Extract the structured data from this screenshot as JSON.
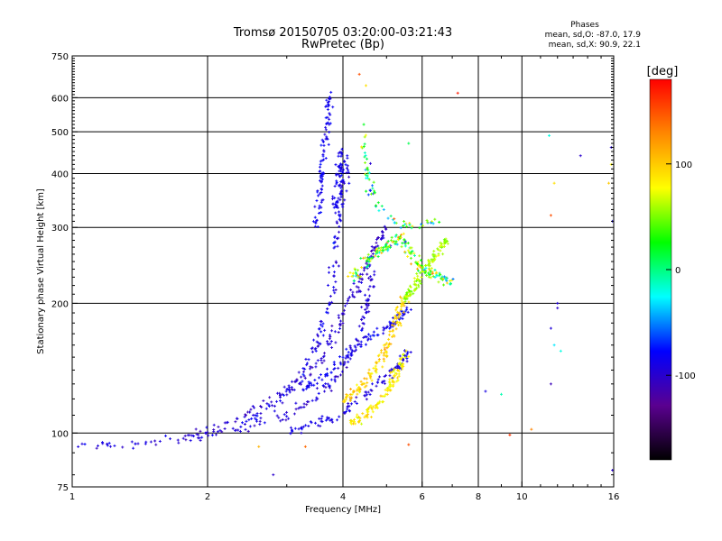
{
  "chart_data": {
    "type": "scatter",
    "title": "Tromsø 20150705 03:20:00-03:21:43",
    "subtitle": "RwPretec (Bp)",
    "xlabel": "Frequency [MHz]",
    "ylabel": "Stationary phase Virtual Height [km]",
    "x_scale": "log",
    "y_scale": "log",
    "xlim": [
      1,
      16
    ],
    "ylim": [
      75,
      750
    ],
    "x_ticks": [
      1,
      2,
      4,
      6,
      8,
      10,
      16
    ],
    "x_tick_labels": [
      "1",
      "2",
      "4",
      "6",
      "8",
      "10",
      "16"
    ],
    "y_ticks": [
      75,
      100,
      200,
      300,
      400,
      500,
      600,
      750
    ],
    "y_tick_labels": [
      "75",
      "100",
      "200",
      "300",
      "400",
      "500",
      "600",
      "750"
    ],
    "x_gridlines": [
      2,
      4,
      6,
      8,
      10
    ],
    "y_gridlines": [
      100,
      200,
      300,
      400,
      500,
      600
    ],
    "grid": true,
    "stats": {
      "heading": "Phases",
      "line_o": "mean, sd,O: -87.0, 17.9",
      "line_x": "mean, sd,X:  90.9, 22.1"
    },
    "colorbar": {
      "label": "[deg]",
      "range": [
        -180,
        180
      ],
      "ticks": [
        100,
        0,
        -100
      ],
      "tick_labels": [
        "100",
        "0",
        "-100"
      ],
      "stops": [
        "#000000",
        "#5a0090",
        "#0000ff",
        "#00ffff",
        "#00ff00",
        "#ffff00",
        "#ff8800",
        "#ff0000"
      ]
    },
    "traces": [
      {
        "name_desc": "low band",
        "phase": -95,
        "spread": 18,
        "density": 55,
        "points": [
          [
            1.0,
            93
          ],
          [
            1.3,
            94
          ],
          [
            1.6,
            96
          ],
          [
            1.9,
            98
          ],
          [
            2.2,
            101
          ],
          [
            2.6,
            105
          ],
          [
            3.0,
            110
          ],
          [
            3.4,
            118
          ],
          [
            3.7,
            128
          ],
          [
            4.0,
            140
          ],
          [
            4.2,
            155
          ],
          [
            4.4,
            175
          ],
          [
            4.5,
            195
          ],
          [
            4.6,
            215
          ],
          [
            4.7,
            240
          ]
        ]
      },
      {
        "name_desc": "mid band",
        "phase": -100,
        "spread": 15,
        "density": 50,
        "points": [
          [
            1.8,
            98
          ],
          [
            2.2,
            105
          ],
          [
            2.6,
            115
          ],
          [
            3.0,
            125
          ],
          [
            3.3,
            135
          ],
          [
            3.6,
            150
          ],
          [
            3.8,
            170
          ],
          [
            4.0,
            190
          ],
          [
            4.2,
            210
          ],
          [
            4.4,
            230
          ],
          [
            4.6,
            255
          ],
          [
            4.8,
            280
          ],
          [
            5.0,
            300
          ]
        ]
      },
      {
        "name_desc": "main upper",
        "phase": -90,
        "spread": 20,
        "density": 45,
        "points": [
          [
            2.4,
            105
          ],
          [
            2.8,
            115
          ],
          [
            3.2,
            135
          ],
          [
            3.5,
            160
          ],
          [
            3.7,
            190
          ],
          [
            3.8,
            230
          ],
          [
            3.9,
            290
          ],
          [
            4.0,
            350
          ],
          [
            4.1,
            420
          ]
        ]
      },
      {
        "name_desc": "spread F column",
        "phase": -85,
        "spread": 15,
        "density": 30,
        "points": [
          [
            3.5,
            300
          ],
          [
            3.55,
            350
          ],
          [
            3.6,
            400
          ],
          [
            3.65,
            470
          ],
          [
            3.7,
            540
          ],
          [
            3.72,
            610
          ]
        ]
      },
      {
        "name_desc": "spread F column 2",
        "phase": -88,
        "spread": 15,
        "density": 22,
        "points": [
          [
            3.85,
            330
          ],
          [
            3.9,
            370
          ],
          [
            3.95,
            410
          ],
          [
            4.0,
            450
          ]
        ]
      },
      {
        "name_desc": "low bottom",
        "phase": -90,
        "spread": 15,
        "density": 35,
        "points": [
          [
            3.0,
            100
          ],
          [
            3.5,
            105
          ],
          [
            4.0,
            112
          ],
          [
            4.5,
            122
          ],
          [
            5.0,
            135
          ],
          [
            5.4,
            145
          ],
          [
            5.6,
            155
          ]
        ]
      },
      {
        "name_desc": "band 140-180",
        "phase": -85,
        "spread": 15,
        "density": 35,
        "points": [
          [
            3.2,
            125
          ],
          [
            3.6,
            135
          ],
          [
            4.0,
            150
          ],
          [
            4.5,
            165
          ],
          [
            5.0,
            175
          ],
          [
            5.3,
            185
          ],
          [
            5.6,
            195
          ]
        ]
      },
      {
        "name_desc": "x-trace lower",
        "phase": 85,
        "spread": 25,
        "density": 40,
        "points": [
          [
            4.2,
            105
          ],
          [
            4.5,
            110
          ],
          [
            4.8,
            118
          ],
          [
            5.1,
            128
          ],
          [
            5.3,
            140
          ],
          [
            5.5,
            155
          ]
        ]
      },
      {
        "name_desc": "x-trace mid",
        "phase": 95,
        "spread": 30,
        "density": 45,
        "points": [
          [
            4.0,
            118
          ],
          [
            4.3,
            125
          ],
          [
            4.6,
            135
          ],
          [
            4.9,
            150
          ],
          [
            5.1,
            165
          ],
          [
            5.3,
            185
          ],
          [
            5.5,
            210
          ]
        ]
      },
      {
        "name_desc": "yellow-green cluster",
        "phase": 60,
        "spread": 20,
        "density": 40,
        "points": [
          [
            5.4,
            200
          ],
          [
            5.6,
            210
          ],
          [
            5.8,
            220
          ],
          [
            6.0,
            235
          ],
          [
            6.3,
            250
          ],
          [
            6.6,
            270
          ],
          [
            6.8,
            280
          ]
        ]
      },
      {
        "name_desc": "mixed scatter 240-300",
        "phase": 40,
        "spread": 110,
        "density": 60,
        "points": [
          [
            4.2,
            230
          ],
          [
            4.5,
            250
          ],
          [
            4.8,
            265
          ],
          [
            5.1,
            275
          ],
          [
            5.4,
            285
          ],
          [
            5.7,
            260
          ],
          [
            6.0,
            240
          ],
          [
            6.5,
            230
          ],
          [
            7.0,
            225
          ]
        ]
      },
      {
        "name_desc": "upper sparse",
        "phase": 20,
        "spread": 140,
        "density": 24,
        "points": [
          [
            4.4,
            500
          ],
          [
            4.5,
            420
          ],
          [
            4.6,
            380
          ],
          [
            4.7,
            340
          ],
          [
            5.2,
            310
          ],
          [
            5.8,
            300
          ],
          [
            6.5,
            310
          ]
        ]
      }
    ],
    "sparse_points": [
      [
        4.35,
        680,
        150
      ],
      [
        4.5,
        640,
        90
      ],
      [
        7.2,
        615,
        170
      ],
      [
        4.45,
        520,
        20
      ],
      [
        5.6,
        470,
        10
      ],
      [
        11.5,
        490,
        -20
      ],
      [
        13.5,
        440,
        -100
      ],
      [
        15.8,
        460,
        -95
      ],
      [
        15.6,
        380,
        100
      ],
      [
        11.6,
        320,
        150
      ],
      [
        12.0,
        195,
        -100
      ],
      [
        11.8,
        160,
        -30
      ],
      [
        11.6,
        130,
        -110
      ],
      [
        11.8,
        380,
        90
      ],
      [
        8.3,
        125,
        -90
      ],
      [
        9.0,
        123,
        -10
      ],
      [
        9.4,
        99,
        160
      ],
      [
        10.5,
        102,
        130
      ],
      [
        15.9,
        82,
        -100
      ],
      [
        12.0,
        200,
        -95
      ],
      [
        2.6,
        93,
        110
      ],
      [
        2.8,
        80,
        -100
      ],
      [
        3.3,
        93,
        140
      ],
      [
        5.6,
        94,
        150
      ],
      [
        15.9,
        310,
        -90
      ],
      [
        15.8,
        420,
        80
      ],
      [
        11.6,
        175,
        -95
      ],
      [
        12.2,
        155,
        -20
      ]
    ]
  }
}
